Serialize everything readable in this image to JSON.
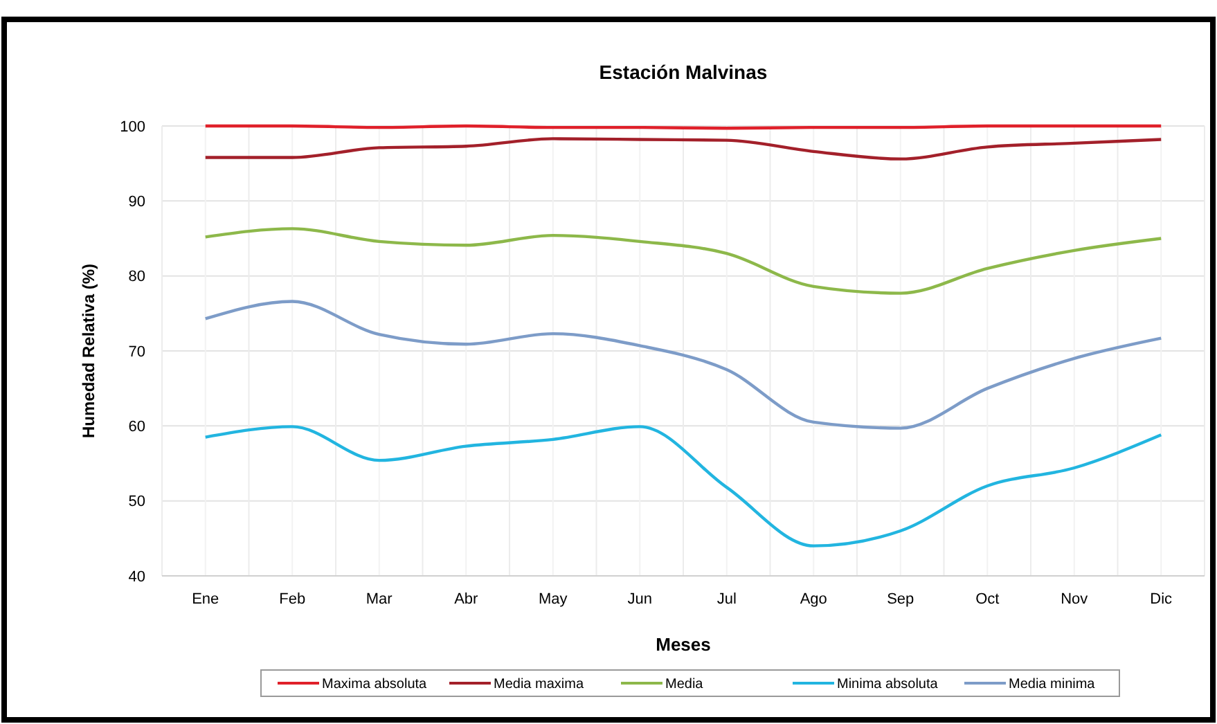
{
  "chart_data": {
    "type": "line",
    "title": "Estación Malvinas",
    "xlabel": "Meses",
    "ylabel": "Humedad Relativa (%)",
    "categories": [
      "Ene",
      "Feb",
      "Mar",
      "Abr",
      "May",
      "Jun",
      "Jul",
      "Ago",
      "Sep",
      "Oct",
      "Nov",
      "Dic"
    ],
    "series": [
      {
        "name": "Maxima absoluta",
        "color": "#e0202a",
        "values": [
          100,
          100,
          99.8,
          100,
          99.8,
          99.8,
          99.7,
          99.8,
          99.8,
          100,
          100,
          100
        ]
      },
      {
        "name": "Media maxima",
        "color": "#a3202a",
        "values": [
          95.8,
          95.8,
          97.1,
          97.3,
          98.3,
          98.2,
          98.1,
          96.6,
          95.6,
          97.2,
          97.7,
          98.2
        ]
      },
      {
        "name": "Media",
        "color": "#8db84a",
        "values": [
          85.2,
          86.3,
          84.6,
          84.1,
          85.4,
          84.6,
          83.0,
          78.6,
          77.7,
          81.0,
          83.4,
          85.0
        ]
      },
      {
        "name": "Minima absoluta",
        "color": "#22b5e0",
        "values": [
          58.5,
          59.9,
          55.4,
          57.3,
          58.2,
          59.9,
          51.8,
          44.0,
          46.0,
          52.0,
          54.4,
          58.8
        ]
      },
      {
        "name": "Media minima",
        "color": "#7d9cc8",
        "values": [
          74.3,
          76.6,
          72.2,
          70.9,
          72.3,
          70.7,
          67.5,
          60.5,
          59.7,
          65.0,
          69.0,
          71.7
        ]
      }
    ],
    "ylim": [
      40,
      100
    ],
    "yticks": [
      40,
      50,
      60,
      70,
      80,
      90,
      100
    ],
    "grid": true,
    "legend": "bottom",
    "marker": "none",
    "line_style": "solid"
  }
}
